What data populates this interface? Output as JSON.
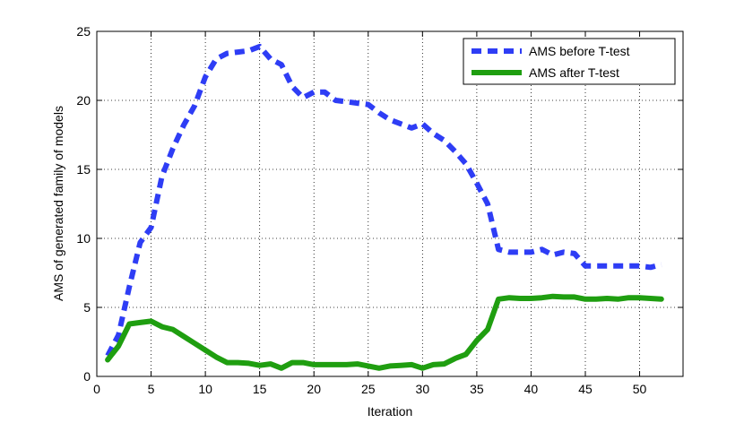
{
  "chart_data": {
    "type": "line",
    "title": "",
    "xlabel": "Iteration",
    "ylabel": "AMS of generated family of models",
    "xlim": [
      0,
      54
    ],
    "ylim": [
      0,
      25
    ],
    "xticks": [
      0,
      5,
      10,
      15,
      20,
      25,
      30,
      35,
      40,
      45,
      50
    ],
    "yticks": [
      0,
      5,
      10,
      15,
      20,
      25
    ],
    "grid": true,
    "legend_position": "top-right",
    "x": [
      1,
      2,
      3,
      4,
      5,
      6,
      7,
      8,
      9,
      10,
      11,
      12,
      13,
      14,
      15,
      16,
      17,
      18,
      19,
      20,
      21,
      22,
      23,
      24,
      25,
      26,
      27,
      28,
      29,
      30,
      31,
      32,
      33,
      34,
      35,
      36,
      37,
      38,
      39,
      40,
      41,
      42,
      43,
      44,
      45,
      46,
      47,
      48,
      49,
      50,
      51,
      52
    ],
    "series": [
      {
        "name": "AMS before T-test",
        "color": "#2e3df5",
        "dash": "dashed",
        "values": [
          1.5,
          3.0,
          6.5,
          9.7,
          10.8,
          14.5,
          16.5,
          18.2,
          19.6,
          21.7,
          23.0,
          23.4,
          23.5,
          23.6,
          23.9,
          23.0,
          22.6,
          21.0,
          20.2,
          20.6,
          20.6,
          20.0,
          19.9,
          19.8,
          19.7,
          19.1,
          18.6,
          18.3,
          18.0,
          18.3,
          17.6,
          17.1,
          16.3,
          15.4,
          14.0,
          12.5,
          9.2,
          9.0,
          9.0,
          9.0,
          9.2,
          8.8,
          9.0,
          8.9,
          8.0,
          8.0,
          8.0,
          8.0,
          8.0,
          8.0,
          7.9,
          8.1
        ]
      },
      {
        "name": "AMS after T-test",
        "color": "#1f9e10",
        "dash": "solid",
        "values": [
          1.2,
          2.2,
          3.8,
          3.9,
          4.0,
          3.6,
          3.4,
          2.9,
          2.4,
          1.9,
          1.4,
          1.0,
          1.0,
          0.95,
          0.8,
          0.9,
          0.6,
          1.0,
          1.0,
          0.85,
          0.85,
          0.85,
          0.85,
          0.9,
          0.75,
          0.6,
          0.75,
          0.8,
          0.85,
          0.6,
          0.85,
          0.9,
          1.3,
          1.6,
          2.6,
          3.4,
          5.6,
          5.7,
          5.65,
          5.65,
          5.7,
          5.8,
          5.75,
          5.75,
          5.6,
          5.6,
          5.65,
          5.6,
          5.7,
          5.7,
          5.65,
          5.6
        ]
      }
    ]
  }
}
